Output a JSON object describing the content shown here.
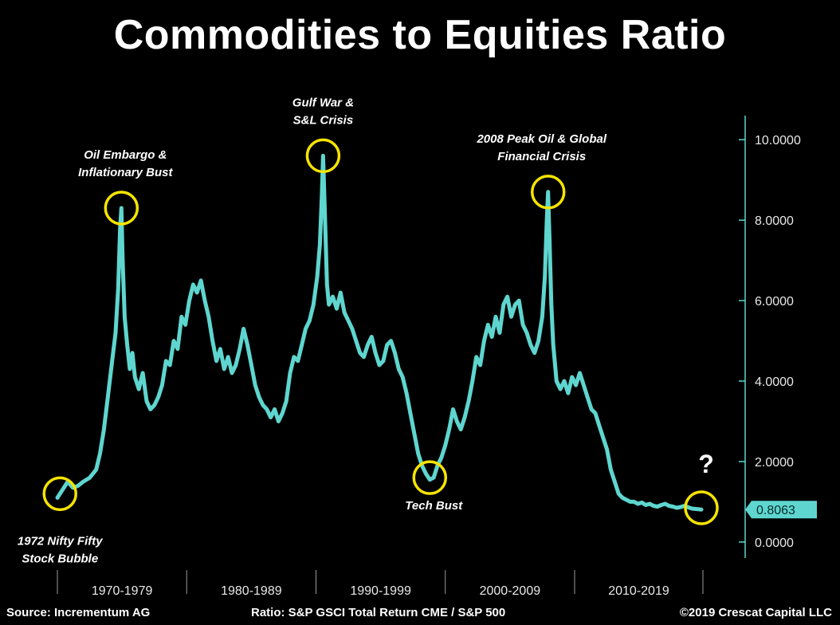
{
  "chart_data": {
    "type": "line",
    "title": "Commodities to Equities Ratio",
    "xlabel": "",
    "ylabel": "",
    "ylim": [
      -0.2,
      10.5
    ],
    "yticks": [
      "0.0000",
      "2.0000",
      "4.0000",
      "6.0000",
      "8.0000",
      "10.0000"
    ],
    "ytick_values": [
      0,
      2,
      4,
      6,
      8,
      10
    ],
    "xticks": [
      "1970-1979",
      "1980-1989",
      "1990-1999",
      "2000-2009",
      "2010-2019"
    ],
    "xrange": [
      1970.0,
      2019.8
    ],
    "last_value_label": "0.8063",
    "line_color": "#5ed6cf",
    "highlight_color": "#f5e400",
    "grid": false,
    "series": [
      {
        "values": [
          [
            1970.0,
            1.1
          ],
          [
            1970.4,
            1.3
          ],
          [
            1970.8,
            1.5
          ],
          [
            1971.2,
            1.35
          ],
          [
            1971.6,
            1.4
          ],
          [
            1972.0,
            1.5
          ],
          [
            1972.5,
            1.6
          ],
          [
            1973.0,
            1.8
          ],
          [
            1973.3,
            2.2
          ],
          [
            1973.6,
            2.8
          ],
          [
            1973.9,
            3.6
          ],
          [
            1974.2,
            4.4
          ],
          [
            1974.5,
            5.2
          ],
          [
            1974.7,
            6.3
          ],
          [
            1974.85,
            7.8
          ],
          [
            1974.95,
            8.3
          ],
          [
            1975.05,
            7.0
          ],
          [
            1975.2,
            5.6
          ],
          [
            1975.4,
            4.9
          ],
          [
            1975.6,
            4.3
          ],
          [
            1975.8,
            4.7
          ],
          [
            1976.0,
            4.1
          ],
          [
            1976.3,
            3.8
          ],
          [
            1976.6,
            4.2
          ],
          [
            1976.9,
            3.5
          ],
          [
            1977.2,
            3.3
          ],
          [
            1977.5,
            3.4
          ],
          [
            1977.8,
            3.6
          ],
          [
            1978.1,
            3.9
          ],
          [
            1978.4,
            4.5
          ],
          [
            1978.7,
            4.4
          ],
          [
            1979.0,
            5.0
          ],
          [
            1979.3,
            4.8
          ],
          [
            1979.6,
            5.6
          ],
          [
            1979.9,
            5.4
          ],
          [
            1980.2,
            6.0
          ],
          [
            1980.5,
            6.4
          ],
          [
            1980.8,
            6.2
          ],
          [
            1981.1,
            6.5
          ],
          [
            1981.4,
            6.0
          ],
          [
            1981.7,
            5.6
          ],
          [
            1982.0,
            5.0
          ],
          [
            1982.3,
            4.5
          ],
          [
            1982.6,
            4.8
          ],
          [
            1982.9,
            4.3
          ],
          [
            1983.2,
            4.6
          ],
          [
            1983.5,
            4.2
          ],
          [
            1983.8,
            4.4
          ],
          [
            1984.1,
            4.8
          ],
          [
            1984.4,
            5.3
          ],
          [
            1984.7,
            4.9
          ],
          [
            1985.0,
            4.4
          ],
          [
            1985.3,
            3.9
          ],
          [
            1985.6,
            3.6
          ],
          [
            1985.9,
            3.4
          ],
          [
            1986.2,
            3.3
          ],
          [
            1986.5,
            3.1
          ],
          [
            1986.8,
            3.3
          ],
          [
            1987.1,
            3.0
          ],
          [
            1987.4,
            3.2
          ],
          [
            1987.7,
            3.5
          ],
          [
            1988.0,
            4.2
          ],
          [
            1988.3,
            4.6
          ],
          [
            1988.6,
            4.5
          ],
          [
            1988.9,
            4.9
          ],
          [
            1989.2,
            5.3
          ],
          [
            1989.5,
            5.5
          ],
          [
            1989.8,
            5.9
          ],
          [
            1990.1,
            6.6
          ],
          [
            1990.3,
            7.4
          ],
          [
            1990.45,
            8.6
          ],
          [
            1990.55,
            9.6
          ],
          [
            1990.7,
            8.0
          ],
          [
            1990.85,
            6.4
          ],
          [
            1991.0,
            5.9
          ],
          [
            1991.3,
            6.1
          ],
          [
            1991.6,
            5.8
          ],
          [
            1991.9,
            6.2
          ],
          [
            1992.2,
            5.7
          ],
          [
            1992.5,
            5.5
          ],
          [
            1992.8,
            5.3
          ],
          [
            1993.1,
            5.0
          ],
          [
            1993.4,
            4.7
          ],
          [
            1993.7,
            4.6
          ],
          [
            1994.0,
            4.9
          ],
          [
            1994.3,
            5.1
          ],
          [
            1994.6,
            4.7
          ],
          [
            1994.9,
            4.4
          ],
          [
            1995.2,
            4.5
          ],
          [
            1995.5,
            4.9
          ],
          [
            1995.8,
            5.0
          ],
          [
            1996.1,
            4.7
          ],
          [
            1996.4,
            4.3
          ],
          [
            1996.7,
            4.1
          ],
          [
            1997.0,
            3.7
          ],
          [
            1997.3,
            3.2
          ],
          [
            1997.6,
            2.7
          ],
          [
            1997.9,
            2.2
          ],
          [
            1998.2,
            1.9
          ],
          [
            1998.5,
            1.7
          ],
          [
            1998.8,
            1.55
          ],
          [
            1999.1,
            1.6
          ],
          [
            1999.4,
            1.9
          ],
          [
            1999.7,
            2.1
          ],
          [
            2000.0,
            2.4
          ],
          [
            2000.3,
            2.8
          ],
          [
            2000.6,
            3.3
          ],
          [
            2000.9,
            3.0
          ],
          [
            2001.2,
            2.8
          ],
          [
            2001.5,
            3.1
          ],
          [
            2001.8,
            3.5
          ],
          [
            2002.1,
            4.0
          ],
          [
            2002.4,
            4.6
          ],
          [
            2002.7,
            4.4
          ],
          [
            2003.0,
            5.0
          ],
          [
            2003.3,
            5.4
          ],
          [
            2003.6,
            5.1
          ],
          [
            2003.9,
            5.6
          ],
          [
            2004.2,
            5.2
          ],
          [
            2004.5,
            5.9
          ],
          [
            2004.8,
            6.1
          ],
          [
            2005.1,
            5.6
          ],
          [
            2005.4,
            5.9
          ],
          [
            2005.7,
            6.0
          ],
          [
            2006.0,
            5.4
          ],
          [
            2006.3,
            5.2
          ],
          [
            2006.6,
            4.9
          ],
          [
            2006.9,
            4.7
          ],
          [
            2007.2,
            5.0
          ],
          [
            2007.5,
            5.6
          ],
          [
            2007.7,
            6.6
          ],
          [
            2007.85,
            8.0
          ],
          [
            2007.95,
            8.7
          ],
          [
            2008.05,
            7.6
          ],
          [
            2008.2,
            5.9
          ],
          [
            2008.35,
            4.9
          ],
          [
            2008.6,
            4.0
          ],
          [
            2008.9,
            3.8
          ],
          [
            2009.2,
            4.0
          ],
          [
            2009.5,
            3.7
          ],
          [
            2009.8,
            4.1
          ],
          [
            2010.1,
            3.9
          ],
          [
            2010.4,
            4.2
          ],
          [
            2010.7,
            3.9
          ],
          [
            2011.0,
            3.6
          ],
          [
            2011.3,
            3.3
          ],
          [
            2011.6,
            3.2
          ],
          [
            2011.9,
            2.9
          ],
          [
            2012.2,
            2.6
          ],
          [
            2012.5,
            2.3
          ],
          [
            2012.8,
            1.8
          ],
          [
            2013.1,
            1.5
          ],
          [
            2013.4,
            1.2
          ],
          [
            2013.7,
            1.1
          ],
          [
            2014.0,
            1.05
          ],
          [
            2014.3,
            1.0
          ],
          [
            2014.6,
            1.0
          ],
          [
            2014.9,
            0.95
          ],
          [
            2015.2,
            0.98
          ],
          [
            2015.5,
            0.92
          ],
          [
            2015.8,
            0.95
          ],
          [
            2016.1,
            0.9
          ],
          [
            2016.4,
            0.88
          ],
          [
            2016.7,
            0.92
          ],
          [
            2017.0,
            0.95
          ],
          [
            2017.3,
            0.9
          ],
          [
            2017.6,
            0.88
          ],
          [
            2017.9,
            0.85
          ],
          [
            2018.2,
            0.87
          ],
          [
            2018.5,
            0.9
          ],
          [
            2018.8,
            0.86
          ],
          [
            2019.1,
            0.83
          ],
          [
            2019.4,
            0.82
          ],
          [
            2019.8,
            0.8063
          ]
        ]
      }
    ],
    "annotations": [
      {
        "lines": [
          "1972 Nifty Fifty",
          "Stock Bubble"
        ],
        "circle": [
          1970.2,
          1.2
        ]
      },
      {
        "lines": [
          "Oil Embargo &",
          "Inflationary Bust"
        ],
        "circle": [
          1974.95,
          8.3
        ]
      },
      {
        "lines": [
          "Gulf War &",
          "S&L Crisis"
        ],
        "circle": [
          1990.55,
          9.6
        ]
      },
      {
        "lines": [
          "Tech Bust"
        ],
        "circle": [
          1998.8,
          1.6
        ]
      },
      {
        "lines": [
          "2008 Peak Oil & Global",
          "Financial Crisis"
        ],
        "circle": [
          2007.95,
          8.7
        ]
      },
      {
        "lines": [
          "?"
        ],
        "circle": [
          2019.8,
          0.85
        ]
      }
    ]
  },
  "footer": {
    "source": "Source: Incrementum AG",
    "ratio": "Ratio: S&P GSCI Total Return CME / S&P 500",
    "copyright": "©2019 Crescat Capital LLC"
  }
}
